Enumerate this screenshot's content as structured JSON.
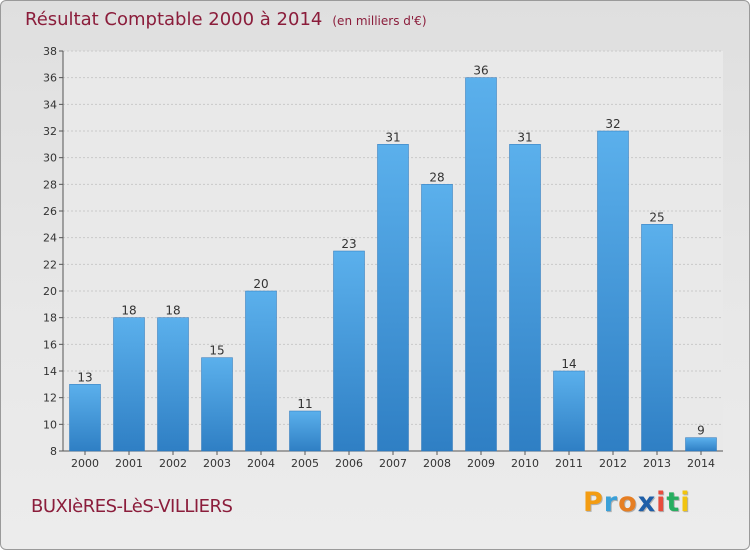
{
  "header": {
    "title": "Résultat Comptable 2000 à 2014",
    "subtitle": "(en milliers d'€)"
  },
  "footer": {
    "commune": "BUXIèRES-LèS-VILLIERS",
    "logo": [
      "P",
      "r",
      "o",
      "x",
      "i",
      "t",
      "i"
    ],
    "logo_colors": [
      "#f39c12",
      "#3aa0d8",
      "#e67e22",
      "#1f5fa8",
      "#e74c3c",
      "#27ae60",
      "#f1c40f"
    ]
  },
  "chart_data": {
    "type": "bar",
    "title": "Résultat Comptable 2000 à 2014",
    "subtitle": "(en milliers d'€)",
    "categories": [
      "2000",
      "2001",
      "2002",
      "2003",
      "2004",
      "2005",
      "2006",
      "2007",
      "2008",
      "2009",
      "2010",
      "2011",
      "2012",
      "2013",
      "2014"
    ],
    "values": [
      13,
      18,
      18,
      15,
      20,
      11,
      23,
      31,
      28,
      36,
      31,
      14,
      32,
      25,
      9
    ],
    "ylim": [
      8,
      38
    ],
    "yticks": [
      8,
      10,
      12,
      14,
      16,
      18,
      20,
      22,
      24,
      26,
      28,
      30,
      32,
      34,
      36,
      38
    ],
    "grid": true,
    "bar_color": "#3d8fd6"
  }
}
